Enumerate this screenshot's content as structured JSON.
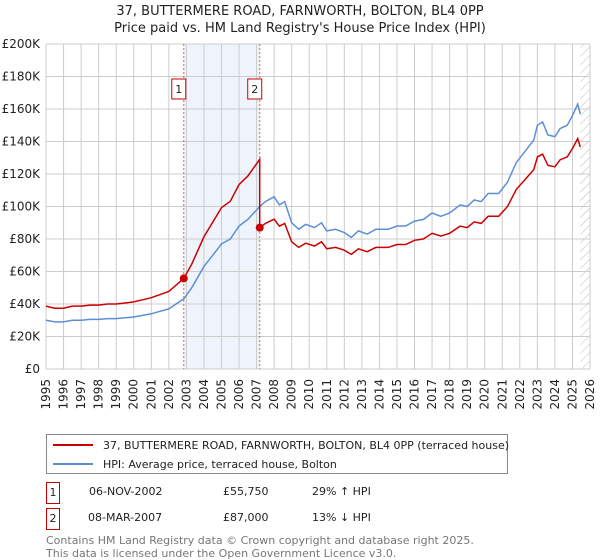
{
  "title": "37, BUTTERMERE ROAD, FARNWORTH, BOLTON, BL4 0PP",
  "subtitle": "Price paid vs. HM Land Registry's House Price Index (HPI)",
  "chart_data": {
    "type": "line",
    "title": "37, BUTTERMERE ROAD, FARNWORTH, BOLTON, BL4 0PP",
    "subtitle": "Price paid vs. HM Land Registry's House Price Index (HPI)",
    "xlabel": "",
    "ylabel": "",
    "xlim": [
      1995,
      2026
    ],
    "ylim": [
      0,
      200000
    ],
    "grid": true,
    "x_ticks": [
      "1995",
      "1996",
      "1997",
      "1998",
      "1999",
      "2000",
      "2001",
      "2002",
      "2003",
      "2004",
      "2005",
      "2006",
      "2007",
      "2008",
      "2009",
      "2010",
      "2011",
      "2012",
      "2013",
      "2014",
      "2015",
      "2016",
      "2017",
      "2018",
      "2019",
      "2020",
      "2021",
      "2022",
      "2023",
      "2024",
      "2025",
      "2026"
    ],
    "y_ticks": [
      {
        "value": 0,
        "label": "£0"
      },
      {
        "value": 20000,
        "label": "£20K"
      },
      {
        "value": 40000,
        "label": "£40K"
      },
      {
        "value": 60000,
        "label": "£60K"
      },
      {
        "value": 80000,
        "label": "£80K"
      },
      {
        "value": 100000,
        "label": "£100K"
      },
      {
        "value": 120000,
        "label": "£120K"
      },
      {
        "value": 140000,
        "label": "£140K"
      },
      {
        "value": 160000,
        "label": "£160K"
      },
      {
        "value": 180000,
        "label": "£180K"
      },
      {
        "value": 200000,
        "label": "£200K"
      }
    ],
    "shaded_range": [
      2002.85,
      2007.18
    ],
    "forecast_hatch_from": 2025.45,
    "series": [
      {
        "name": "37, BUTTERMERE ROAD, FARNWORTH, BOLTON, BL4 0PP (terraced house)",
        "color": "#cc0000",
        "x": [
          1995,
          1995.5,
          1996,
          1996.5,
          1997,
          1997.5,
          1998,
          1998.5,
          1999,
          1999.5,
          2000,
          2000.5,
          2001,
          2001.5,
          2002,
          2002.85,
          2003.3,
          2004,
          2004.5,
          2005,
          2005.5,
          2006,
          2006.5,
          2007.18,
          2007.18,
          2007.5,
          2008,
          2008.3,
          2008.6,
          2009,
          2009.4,
          2009.8,
          2010.3,
          2010.7,
          2011,
          2011.5,
          2012,
          2012.4,
          2012.8,
          2013.3,
          2013.8,
          2014.5,
          2015,
          2015.5,
          2016,
          2016.5,
          2017,
          2017.5,
          2018,
          2018.6,
          2019,
          2019.4,
          2019.8,
          2020.2,
          2020.8,
          2021.3,
          2021.8,
          2022.3,
          2022.8,
          2023,
          2023.3,
          2023.6,
          2024,
          2024.3,
          2024.7,
          2025,
          2025.3,
          2025.45
        ],
        "y": [
          38700,
          37400,
          37400,
          38700,
          38700,
          39300,
          39300,
          40000,
          40000,
          40600,
          41300,
          42600,
          43900,
          45800,
          47700,
          55750,
          64500,
          81300,
          90300,
          99300,
          103200,
          113500,
          118700,
          129000,
          87000,
          89600,
          92200,
          87900,
          89600,
          78300,
          74800,
          77400,
          75700,
          78300,
          74000,
          74800,
          73100,
          70500,
          74000,
          72200,
          74800,
          74800,
          76600,
          76600,
          79200,
          80000,
          83500,
          81800,
          83500,
          87900,
          87000,
          90500,
          89600,
          94000,
          94000,
          100000,
          110500,
          116600,
          122700,
          130500,
          132200,
          125300,
          124400,
          128800,
          130500,
          135700,
          141800,
          136600
        ]
      },
      {
        "name": "HPI: Average price, terraced house, Bolton",
        "color": "#5b8fd6",
        "x": [
          1995,
          1995.5,
          1996,
          1996.5,
          1997,
          1997.5,
          1998,
          1998.5,
          1999,
          1999.5,
          2000,
          2000.5,
          2001,
          2001.5,
          2002,
          2002.85,
          2003.3,
          2004,
          2004.5,
          2005,
          2005.5,
          2006,
          2006.5,
          2007.18,
          2007.5,
          2008,
          2008.3,
          2008.6,
          2009,
          2009.4,
          2009.8,
          2010.3,
          2010.7,
          2011,
          2011.5,
          2012,
          2012.4,
          2012.8,
          2013.3,
          2013.8,
          2014.5,
          2015,
          2015.5,
          2016,
          2016.5,
          2017,
          2017.5,
          2018,
          2018.6,
          2019,
          2019.4,
          2019.8,
          2020.2,
          2020.8,
          2021.3,
          2021.8,
          2022.3,
          2022.8,
          2023,
          2023.3,
          2023.6,
          2024,
          2024.3,
          2024.7,
          2025,
          2025.3,
          2025.45
        ],
        "y": [
          30000,
          29000,
          29000,
          30000,
          30000,
          30500,
          30500,
          31000,
          31000,
          31500,
          32000,
          33000,
          34000,
          35500,
          37000,
          43200,
          50000,
          63000,
          70000,
          77000,
          80000,
          88000,
          92000,
          100000,
          103000,
          106000,
          101000,
          103000,
          90000,
          86000,
          89000,
          87000,
          90000,
          85000,
          86000,
          84000,
          81000,
          85000,
          83000,
          86000,
          86000,
          88000,
          88000,
          91000,
          92000,
          96000,
          94000,
          96000,
          101000,
          100000,
          104000,
          103000,
          108000,
          108000,
          115000,
          127000,
          134000,
          141000,
          150000,
          152000,
          144000,
          143000,
          148000,
          150000,
          156000,
          163000,
          157000
        ]
      }
    ],
    "sales": [
      {
        "label": "1",
        "x": 2002.85,
        "y": 55750
      },
      {
        "label": "2",
        "x": 2007.18,
        "y": 87000
      }
    ],
    "legend_position": "bottom"
  },
  "legend": {
    "property": "37, BUTTERMERE ROAD, FARNWORTH, BOLTON, BL4 0PP (terraced house)",
    "hpi": "HPI: Average price, terraced house, Bolton"
  },
  "transactions": [
    {
      "num": "1",
      "date": "06-NOV-2002",
      "price": "£55,750",
      "hpi": "29% ↑ HPI"
    },
    {
      "num": "2",
      "date": "08-MAR-2007",
      "price": "£87,000",
      "hpi": "13% ↓ HPI"
    }
  ],
  "footer": {
    "line1": "Contains HM Land Registry data © Crown copyright and database right 2025.",
    "line2": "This data is licensed under the Open Government Licence v3.0."
  }
}
